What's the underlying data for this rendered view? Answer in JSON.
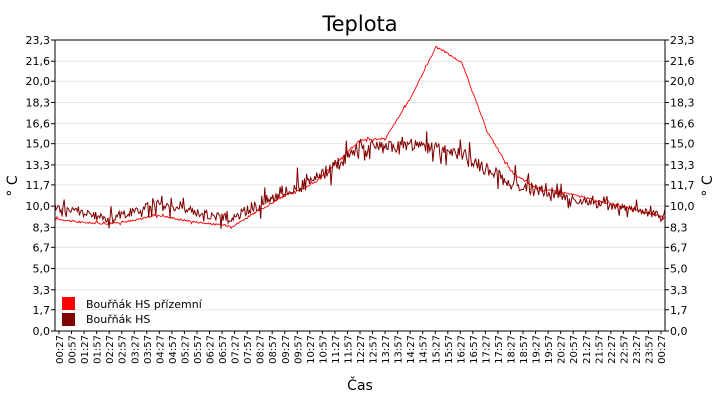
{
  "chart_data": {
    "type": "line",
    "title": "Teplota",
    "xlabel": "Čas",
    "ylabel": "° C",
    "ylabel_right": "° C",
    "ylim": [
      0.0,
      23.3
    ],
    "yticks": [
      "0,0",
      "1,7",
      "3,3",
      "5,0",
      "6,7",
      "8,3",
      "10,0",
      "11,7",
      "13,3",
      "15,0",
      "16,6",
      "18,3",
      "20,0",
      "21,6",
      "23,3"
    ],
    "ytick_values": [
      0.0,
      1.7,
      3.3,
      5.0,
      6.7,
      8.3,
      10.0,
      11.7,
      13.3,
      15.0,
      16.6,
      18.3,
      20.0,
      21.6,
      23.3
    ],
    "xticks": [
      "00:27",
      "00:57",
      "01:27",
      "01:57",
      "02:27",
      "02:57",
      "03:27",
      "03:57",
      "04:27",
      "04:57",
      "05:27",
      "05:57",
      "06:27",
      "06:57",
      "07:27",
      "07:57",
      "08:27",
      "08:57",
      "09:27",
      "09:57",
      "10:27",
      "10:57",
      "11:27",
      "11:57",
      "12:27",
      "12:57",
      "13:27",
      "13:57",
      "14:27",
      "14:57",
      "15:27",
      "15:57",
      "16:27",
      "16:57",
      "17:27",
      "17:57",
      "18:27",
      "18:57",
      "19:27",
      "19:57",
      "20:27",
      "20:57",
      "21:27",
      "21:57",
      "22:27",
      "22:57",
      "23:27",
      "23:57",
      "00:27"
    ],
    "grid": true,
    "legend_position": "bottom-left",
    "x": [
      "00:27",
      "01:27",
      "02:27",
      "03:27",
      "04:27",
      "05:27",
      "06:27",
      "07:27",
      "08:27",
      "09:27",
      "10:27",
      "11:27",
      "12:27",
      "13:27",
      "14:27",
      "15:27",
      "16:27",
      "17:27",
      "18:27",
      "19:27",
      "20:27",
      "21:27",
      "22:27",
      "23:27",
      "00:27"
    ],
    "series": [
      {
        "name": "Bouřňák HS přízemní",
        "color": "#ff0000",
        "values": [
          9.0,
          8.7,
          8.6,
          8.8,
          9.3,
          8.9,
          8.6,
          8.4,
          9.6,
          10.8,
          11.6,
          13.3,
          15.3,
          15.4,
          18.7,
          22.8,
          21.5,
          16.0,
          12.6,
          11.4,
          11.1,
          10.6,
          10.1,
          9.6,
          9.1
        ]
      },
      {
        "name": "Bouřňák HS",
        "color": "#800000",
        "values": [
          9.9,
          9.5,
          9.0,
          9.5,
          10.2,
          9.8,
          9.3,
          9.0,
          10.2,
          11.2,
          11.8,
          13.2,
          14.8,
          14.7,
          14.9,
          14.6,
          14.2,
          12.9,
          11.8,
          11.2,
          10.8,
          10.3,
          9.9,
          9.6,
          9.2
        ]
      }
    ]
  }
}
